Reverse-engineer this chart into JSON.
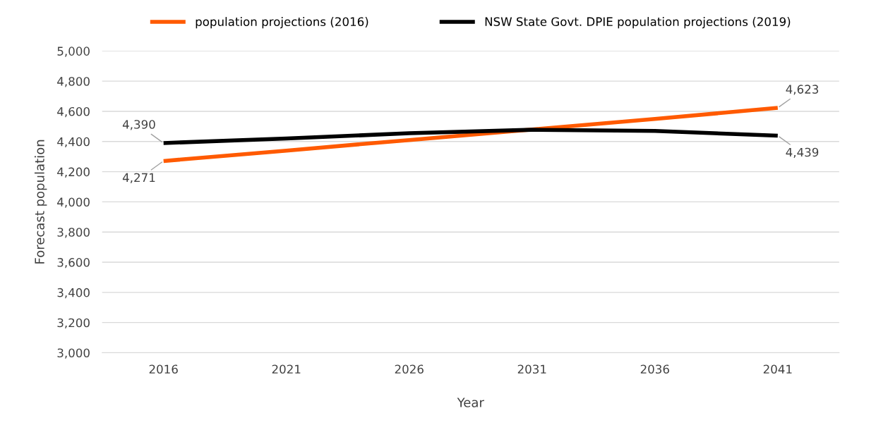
{
  "chart_data": {
    "type": "line",
    "xlabel": "Year",
    "ylabel": "Forecast population",
    "categories": [
      "2016",
      "2021",
      "2026",
      "2031",
      "2036",
      "2041"
    ],
    "series": [
      {
        "name": "population projections (2016)",
        "color": "#ff5a00",
        "values": [
          4271,
          4340,
          4410,
          4480,
          4550,
          4623
        ],
        "value_labels": [
          "4,271",
          null,
          null,
          null,
          null,
          "4,623"
        ]
      },
      {
        "name": "NSW State Govt. DPIE population projections (2019)",
        "color": "#000000",
        "values": [
          4390,
          4420,
          4455,
          4478,
          4470,
          4439
        ],
        "value_labels": [
          "4,390",
          null,
          null,
          null,
          null,
          "4,439"
        ]
      }
    ],
    "ylim": [
      3000,
      5000
    ],
    "yticks": [
      {
        "value": 3000,
        "label": "3,000"
      },
      {
        "value": 3200,
        "label": "3,200"
      },
      {
        "value": 3400,
        "label": "3,400"
      },
      {
        "value": 3600,
        "label": "3,600"
      },
      {
        "value": 3800,
        "label": "3,800"
      },
      {
        "value": 4000,
        "label": "4,000"
      },
      {
        "value": 4200,
        "label": "4,200"
      },
      {
        "value": 4400,
        "label": "4,400"
      },
      {
        "value": 4600,
        "label": "4,600"
      },
      {
        "value": 4800,
        "label": "4,800"
      },
      {
        "value": 5000,
        "label": "5,000"
      }
    ],
    "grid": "y",
    "legend": "top",
    "marker": "none",
    "line_style": "solid"
  }
}
